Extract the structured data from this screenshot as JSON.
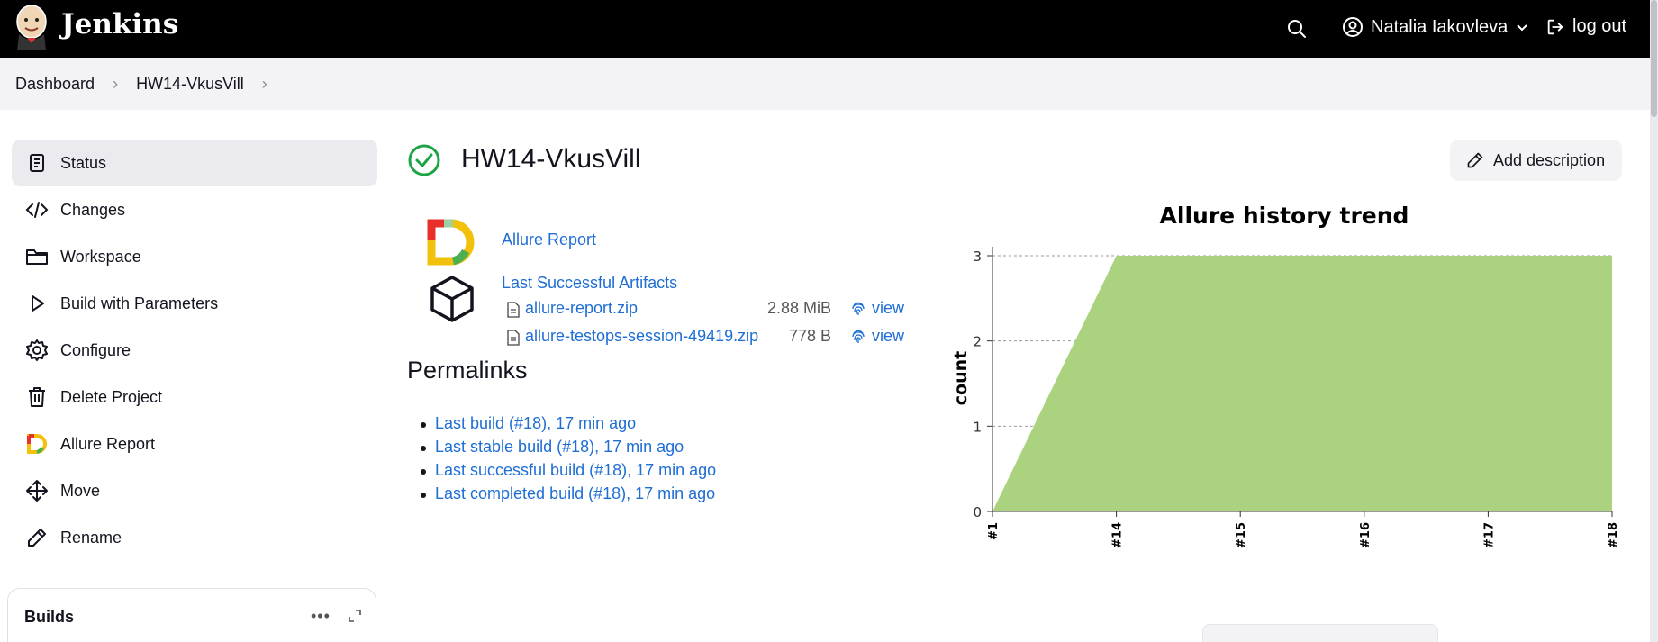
{
  "header": {
    "app_name": "Jenkins",
    "user_name": "Natalia Iakovleva",
    "logout_label": "log out"
  },
  "breadcrumb": [
    "Dashboard",
    "HW14-VkusVill"
  ],
  "sidebar": {
    "items": [
      {
        "label": "Status",
        "icon": "status-icon",
        "active": true
      },
      {
        "label": "Changes",
        "icon": "code-icon"
      },
      {
        "label": "Workspace",
        "icon": "folder-icon"
      },
      {
        "label": "Build with Parameters",
        "icon": "play-icon"
      },
      {
        "label": "Configure",
        "icon": "gear-icon"
      },
      {
        "label": "Delete Project",
        "icon": "trash-icon"
      },
      {
        "label": "Allure Report",
        "icon": "allure-icon"
      },
      {
        "label": "Move",
        "icon": "move-icon"
      },
      {
        "label": "Rename",
        "icon": "pencil-icon"
      }
    ],
    "builds_title": "Builds"
  },
  "main": {
    "title": "HW14-VkusVill",
    "add_description_label": "Add description",
    "allure_report_label": "Allure Report",
    "artifacts_label": "Last Successful Artifacts",
    "artifacts": [
      {
        "name": "allure-report.zip",
        "size": "2.88 MiB",
        "view": "view"
      },
      {
        "name": "allure-testops-session-49419.zip",
        "size": "778 B",
        "view": "view"
      }
    ],
    "permalinks_heading": "Permalinks",
    "permalinks": [
      "Last build (#18), 17 min ago",
      "Last stable build (#18), 17 min ago",
      "Last successful build (#18), 17 min ago",
      "Last completed build (#18), 17 min ago"
    ]
  },
  "chart_data": {
    "type": "area",
    "title": "Allure history trend",
    "ylabel": "count",
    "xlabel": "",
    "categories": [
      "#1",
      "#14",
      "#15",
      "#16",
      "#17",
      "#18"
    ],
    "series": [
      {
        "values": [
          0,
          3,
          3,
          3,
          3,
          3
        ],
        "color": "#aad27f"
      }
    ],
    "ylim": [
      0,
      3
    ],
    "yticks": [
      0,
      1,
      2,
      3
    ],
    "grid": true
  }
}
